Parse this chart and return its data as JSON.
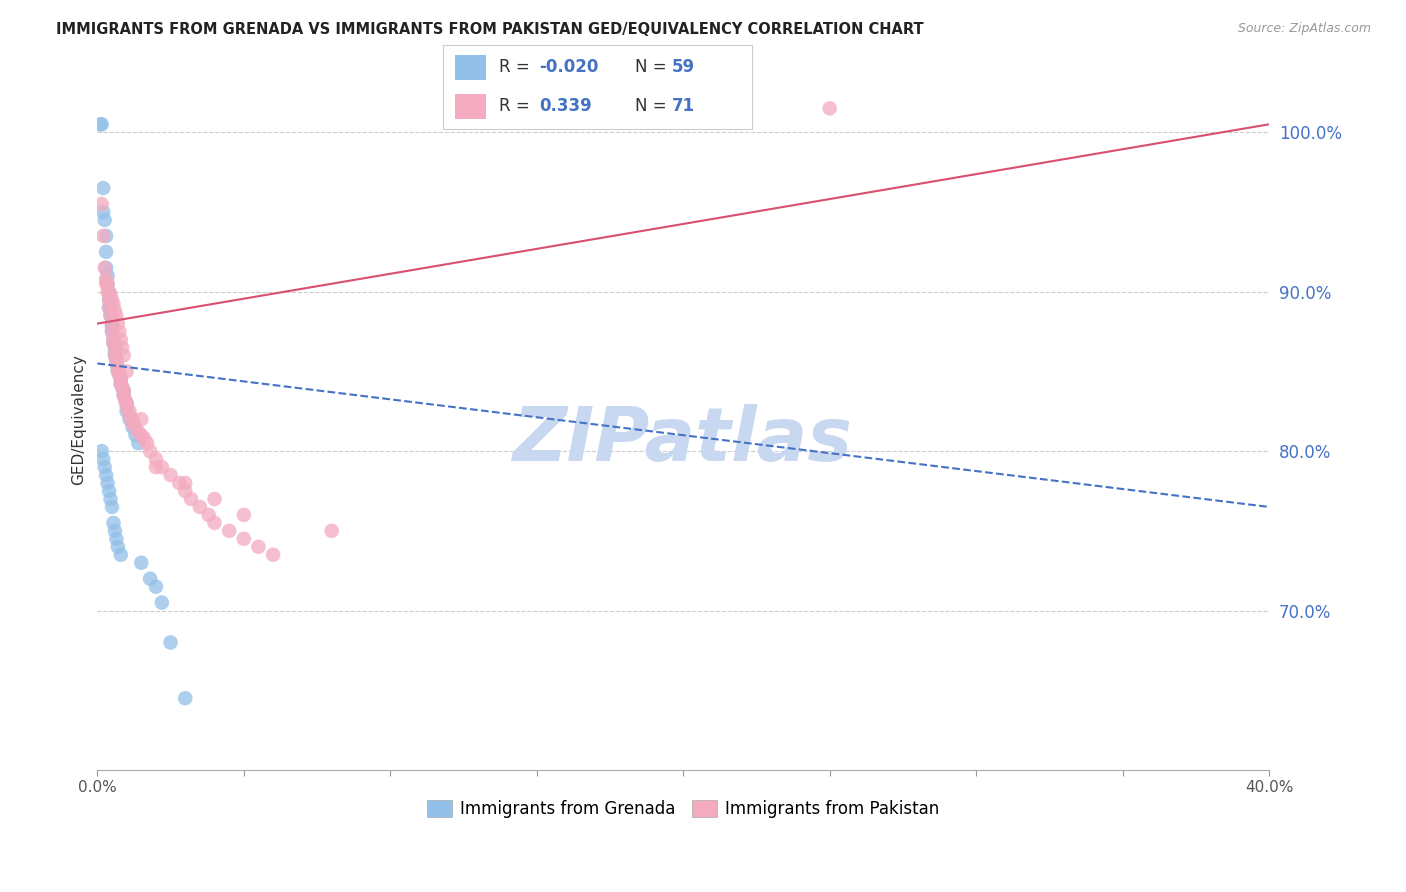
{
  "title": "IMMIGRANTS FROM GRENADA VS IMMIGRANTS FROM PAKISTAN GED/EQUIVALENCY CORRELATION CHART",
  "source": "Source: ZipAtlas.com",
  "ylabel": "GED/Equivalency",
  "yticks": [
    100.0,
    90.0,
    80.0,
    70.0
  ],
  "ytick_labels": [
    "100.0%",
    "90.0%",
    "80.0%",
    "70.0%"
  ],
  "xtick_positions": [
    0,
    5,
    10,
    15,
    20,
    25,
    30,
    35,
    40
  ],
  "xlim": [
    0.0,
    40.0
  ],
  "ylim": [
    60.0,
    104.0
  ],
  "legend_r_grenada": "-0.020",
  "legend_n_grenada": "59",
  "legend_r_pakistan": "0.339",
  "legend_n_pakistan": "71",
  "color_grenada": "#92C0E8",
  "color_pakistan": "#F4AABF",
  "trendline_grenada_color": "#4472C4",
  "trendline_pakistan_color": "#D94F6E",
  "watermark_text": "ZIPatlas",
  "watermark_color": "#C8D8F0",
  "background_color": "#FFFFFF",
  "grenada_x": [
    0.1,
    0.15,
    0.2,
    0.2,
    0.25,
    0.3,
    0.3,
    0.3,
    0.35,
    0.35,
    0.4,
    0.4,
    0.4,
    0.4,
    0.45,
    0.45,
    0.5,
    0.5,
    0.5,
    0.55,
    0.55,
    0.6,
    0.6,
    0.6,
    0.65,
    0.65,
    0.7,
    0.7,
    0.75,
    0.8,
    0.8,
    0.85,
    0.9,
    0.9,
    1.0,
    1.0,
    1.1,
    1.2,
    1.3,
    1.4,
    0.15,
    0.2,
    0.25,
    0.3,
    0.35,
    0.4,
    0.45,
    0.5,
    0.55,
    0.6,
    0.65,
    0.7,
    0.8,
    1.5,
    1.8,
    2.0,
    2.2,
    2.5,
    3.0
  ],
  "grenada_y": [
    100.5,
    100.5,
    96.5,
    95.0,
    94.5,
    93.5,
    92.5,
    91.5,
    91.0,
    90.5,
    90.0,
    89.8,
    89.5,
    89.0,
    88.8,
    88.5,
    88.0,
    87.8,
    87.5,
    87.0,
    86.8,
    86.5,
    86.2,
    86.0,
    85.8,
    85.5,
    85.2,
    85.0,
    84.8,
    84.5,
    84.2,
    84.0,
    83.8,
    83.5,
    83.0,
    82.5,
    82.0,
    81.5,
    81.0,
    80.5,
    80.0,
    79.5,
    79.0,
    78.5,
    78.0,
    77.5,
    77.0,
    76.5,
    75.5,
    75.0,
    74.5,
    74.0,
    73.5,
    73.0,
    72.0,
    71.5,
    70.5,
    68.0,
    64.5
  ],
  "pakistan_x": [
    0.15,
    0.2,
    0.25,
    0.3,
    0.35,
    0.4,
    0.4,
    0.45,
    0.5,
    0.5,
    0.55,
    0.55,
    0.6,
    0.6,
    0.65,
    0.65,
    0.7,
    0.7,
    0.75,
    0.8,
    0.8,
    0.85,
    0.9,
    0.9,
    0.95,
    1.0,
    1.0,
    1.1,
    1.1,
    1.2,
    1.2,
    1.3,
    1.4,
    1.5,
    1.6,
    1.7,
    1.8,
    2.0,
    2.2,
    2.5,
    2.8,
    3.0,
    3.2,
    3.5,
    3.8,
    4.0,
    4.5,
    5.0,
    5.5,
    6.0,
    0.3,
    0.35,
    0.4,
    0.45,
    0.5,
    0.55,
    0.6,
    0.65,
    0.7,
    0.75,
    0.8,
    0.85,
    0.9,
    1.0,
    1.5,
    2.0,
    3.0,
    4.0,
    5.0,
    8.0,
    25.0
  ],
  "pakistan_y": [
    95.5,
    93.5,
    91.5,
    90.5,
    90.0,
    89.5,
    89.0,
    88.5,
    88.0,
    87.5,
    87.0,
    86.8,
    86.5,
    86.0,
    85.8,
    85.5,
    85.2,
    85.0,
    84.8,
    84.5,
    84.2,
    84.0,
    83.8,
    83.5,
    83.2,
    83.0,
    82.8,
    82.5,
    82.2,
    82.0,
    81.8,
    81.5,
    81.2,
    81.0,
    80.8,
    80.5,
    80.0,
    79.5,
    79.0,
    78.5,
    78.0,
    77.5,
    77.0,
    76.5,
    76.0,
    75.5,
    75.0,
    74.5,
    74.0,
    73.5,
    90.8,
    90.5,
    90.0,
    89.8,
    89.5,
    89.2,
    88.8,
    88.5,
    88.0,
    87.5,
    87.0,
    86.5,
    86.0,
    85.0,
    82.0,
    79.0,
    78.0,
    77.0,
    76.0,
    75.0,
    101.5
  ]
}
